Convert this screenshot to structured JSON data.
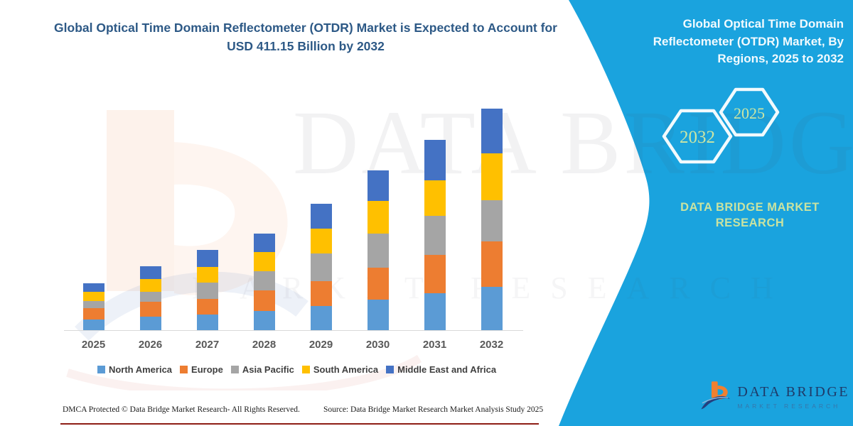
{
  "left_panel": {
    "title": "Global Optical Time Domain Reflectometer (OTDR) Market is Expected to Account for USD 411.15 Billion by 2032",
    "footer_left": "DMCA Protected © Data Bridge Market Research-  All Rights Reserved.",
    "footer_right": "Source: Data Bridge Market Research  Market Analysis Study 2025"
  },
  "right_panel": {
    "heading": "Global Optical Time Domain Reflectometer (OTDR) Market, By Regions, 2025 to 2032",
    "hexagons": [
      "2032",
      "2025"
    ],
    "caption": "DATA BRIDGE MARKET RESEARCH",
    "logo_name": "DATA BRIDGE",
    "logo_subtitle": "MARKET RESEARCH",
    "background_color": "#1AA3DE",
    "hexagon_text_color": "#CDE6A4"
  },
  "watermark": {
    "line1": "DATA BRIDGE",
    "line2": "MARKET RESEARCH"
  },
  "chart_data": {
    "type": "bar",
    "stacked": true,
    "title": "Global Optical Time Domain Reflectometer (OTDR) Market, By Regions, 2025 to 2032",
    "unit": "USD Billion",
    "categories": [
      "2025",
      "2026",
      "2027",
      "2028",
      "2029",
      "2030",
      "2031",
      "2032"
    ],
    "series": [
      {
        "name": "North America",
        "color": "#5B9BD5",
        "values": [
          19.4,
          24.4,
          28.9,
          35.6,
          45.0,
          56.4,
          67.9,
          80.05
        ]
      },
      {
        "name": "Europe",
        "color": "#ED7D31",
        "values": [
          21.6,
          28.8,
          28.9,
          37.8,
          46.3,
          60.0,
          71.9,
          84.6
        ]
      },
      {
        "name": "Asia Pacific",
        "color": "#A5A5A5",
        "values": [
          13.0,
          17.7,
          31.1,
          35.6,
          50.8,
          62.2,
          72.8,
          76.2
        ]
      },
      {
        "name": "South America",
        "color": "#FFC000",
        "values": [
          17.3,
          24.4,
          28.9,
          35.6,
          46.3,
          61.3,
          66.1,
          86.7
        ]
      },
      {
        "name": "Middle East and Africa",
        "color": "#4472C4",
        "values": [
          16.0,
          23.5,
          31.1,
          34.7,
          46.3,
          56.4,
          75.0,
          83.6
        ]
      }
    ],
    "annual_totals_usd_billion": [
      87.3,
      118.8,
      148.9,
      179.3,
      234.7,
      296.3,
      353.7,
      411.15
    ],
    "ylim": [
      0,
      420
    ],
    "y_axis_visible": false,
    "gridlines": false,
    "legend_position": "bottom"
  }
}
